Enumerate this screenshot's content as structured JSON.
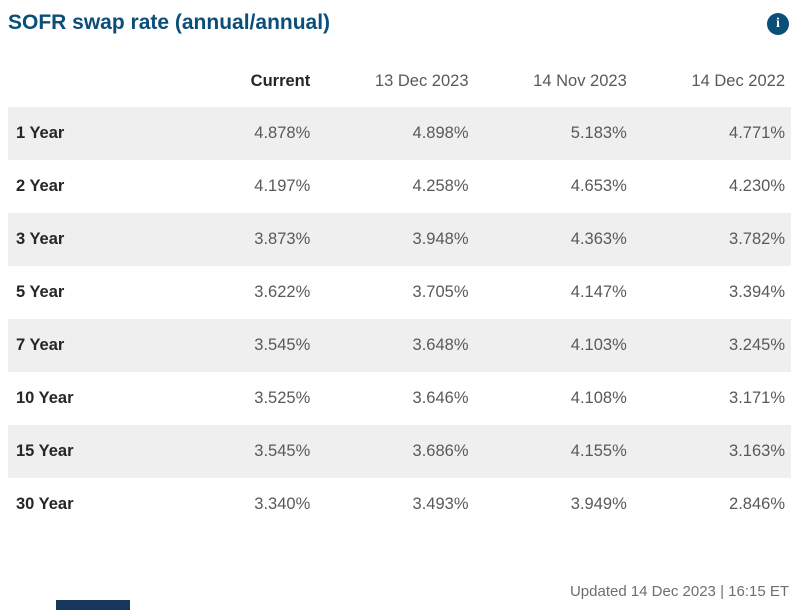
{
  "header": {
    "title": "SOFR swap rate (annual/annual)",
    "info_glyph": "i"
  },
  "table": {
    "columns": [
      "Current",
      "13 Dec 2023",
      "14 Nov 2023",
      "14 Dec 2022"
    ],
    "rows": [
      {
        "label": "1 Year",
        "values": [
          "4.878%",
          "4.898%",
          "5.183%",
          "4.771%"
        ]
      },
      {
        "label": "2 Year",
        "values": [
          "4.197%",
          "4.258%",
          "4.653%",
          "4.230%"
        ]
      },
      {
        "label": "3 Year",
        "values": [
          "3.873%",
          "3.948%",
          "4.363%",
          "3.782%"
        ]
      },
      {
        "label": "5 Year",
        "values": [
          "3.622%",
          "3.705%",
          "4.147%",
          "3.394%"
        ]
      },
      {
        "label": "7 Year",
        "values": [
          "3.545%",
          "3.648%",
          "4.103%",
          "3.245%"
        ]
      },
      {
        "label": "10 Year",
        "values": [
          "3.525%",
          "3.646%",
          "4.108%",
          "3.171%"
        ]
      },
      {
        "label": "15 Year",
        "values": [
          "3.545%",
          "3.686%",
          "4.155%",
          "3.163%"
        ]
      },
      {
        "label": "30 Year",
        "values": [
          "3.340%",
          "3.493%",
          "3.949%",
          "2.846%"
        ]
      }
    ]
  },
  "footer": {
    "updated": "Updated 14 Dec 2023 | 16:15 ET"
  },
  "colors": {
    "accent_blue": "#0a4e7a",
    "stripe_gray": "#efefef"
  }
}
